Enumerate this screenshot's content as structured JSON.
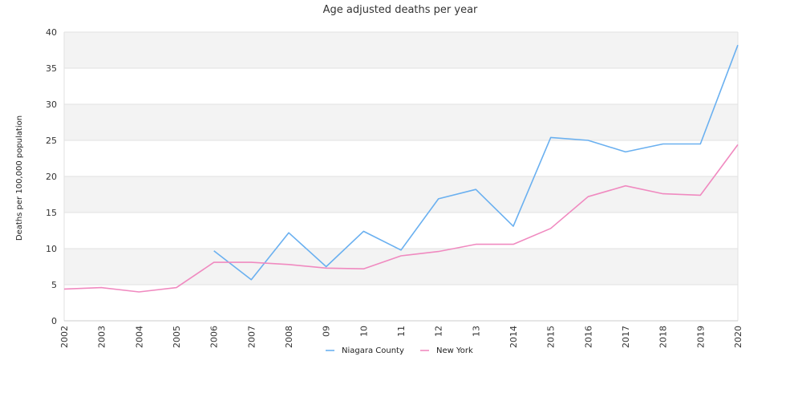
{
  "chart_data": {
    "type": "line",
    "title": "Age adjusted deaths per year",
    "xlabel": "",
    "ylabel": "Deaths per 100,000 population",
    "ylim": [
      0,
      40
    ],
    "yticks": [
      0,
      5,
      10,
      15,
      20,
      25,
      30,
      35,
      40
    ],
    "categories": [
      "2002",
      "2003",
      "2004",
      "2005",
      "2006",
      "2007",
      "2008",
      "09",
      "10",
      "11",
      "12",
      "13",
      "2014",
      "2015",
      "2016",
      "2017",
      "2018",
      "2019",
      "2020"
    ],
    "series": [
      {
        "name": "Niagara County",
        "color": "#6ab0f0",
        "values": [
          null,
          null,
          null,
          null,
          9.7,
          5.7,
          12.2,
          7.5,
          12.4,
          9.8,
          16.9,
          18.2,
          13.1,
          25.4,
          25.0,
          23.4,
          24.5,
          24.5,
          38.2
        ]
      },
      {
        "name": "New York",
        "color": "#f08ac0",
        "values": [
          4.4,
          4.6,
          4.0,
          4.6,
          8.1,
          8.1,
          7.8,
          7.3,
          7.2,
          9.0,
          9.6,
          10.6,
          10.6,
          12.8,
          17.2,
          18.7,
          17.6,
          17.4,
          24.4
        ]
      }
    ],
    "grid": true,
    "band_colors": [
      "#f3f3f3",
      "#ffffff"
    ],
    "legend_position": "bottom"
  }
}
